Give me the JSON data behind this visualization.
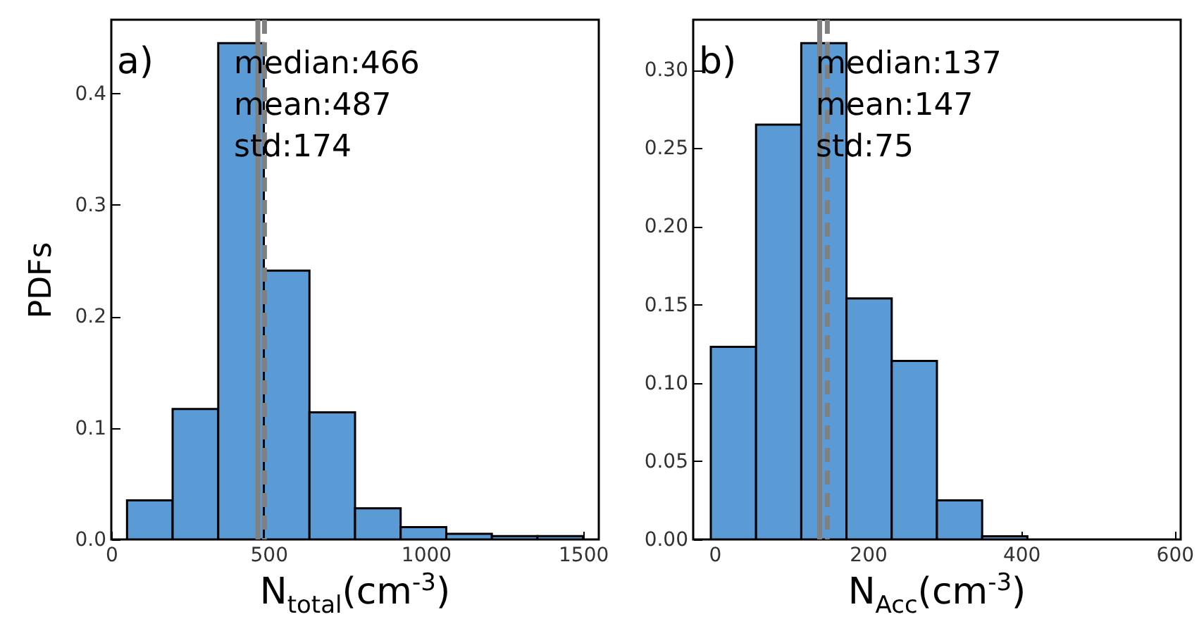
{
  "chart_data": [
    {
      "type": "histogram",
      "bins": [
        50,
        195,
        340,
        485,
        630,
        775,
        920,
        1065,
        1210,
        1355,
        1500
      ],
      "values": [
        0.035,
        0.117,
        0.445,
        0.241,
        0.114,
        0.028,
        0.011,
        0.005,
        0.003,
        0.003
      ],
      "color": "#5b9bd5",
      "xlim": [
        0,
        1550
      ],
      "xticks": [
        0,
        500,
        1000,
        1500
      ],
      "ylim": [
        0,
        0.466
      ],
      "yticks": [
        {
          "value": 0,
          "label": "0.0"
        },
        0.1,
        0.2,
        0.3,
        0.4
      ],
      "xlabel": "N$_{total}$(cm$^{-3}$)",
      "ylabel": "PDFs",
      "annotations": [
        "a)",
        "median:466",
        "mean:487",
        "std:174"
      ],
      "ref_lines": [
        {
          "axis": "x",
          "value": 466,
          "color": "#808080",
          "line_style": "solid"
        },
        {
          "axis": "x",
          "value": 487,
          "color": "#808080",
          "line_style": "dashed"
        }
      ]
    },
    {
      "type": "histogram",
      "bins": [
        -5,
        54,
        113,
        172,
        231,
        290,
        349,
        408
      ],
      "values": [
        0.123,
        0.265,
        0.317,
        0.154,
        0.114,
        0.025,
        0.002
      ],
      "color": "#5b9bd5",
      "xlim": [
        -28,
        608
      ],
      "xticks": [
        0,
        200,
        400,
        600
      ],
      "ylim": [
        0,
        0.332
      ],
      "yticks": [
        {
          "value": 0,
          "label": "0.00"
        },
        {
          "value": 0.05,
          "label": "0.05"
        },
        {
          "value": 0.1,
          "label": "0.10"
        },
        {
          "value": 0.15,
          "label": "0.15"
        },
        {
          "value": 0.2,
          "label": "0.20"
        },
        {
          "value": 0.25,
          "label": "0.25"
        },
        {
          "value": 0.3,
          "label": "0.30"
        }
      ],
      "xlabel": "N$_{Acc}$(cm$^{-3}$)",
      "annotations": [
        "b)",
        "median:137",
        "mean:147",
        "std:75"
      ],
      "ref_lines": [
        {
          "axis": "x",
          "value": 137,
          "color": "#808080",
          "line_style": "solid"
        },
        {
          "axis": "x",
          "value": 147,
          "color": "#808080",
          "line_style": "dashed"
        }
      ]
    }
  ]
}
